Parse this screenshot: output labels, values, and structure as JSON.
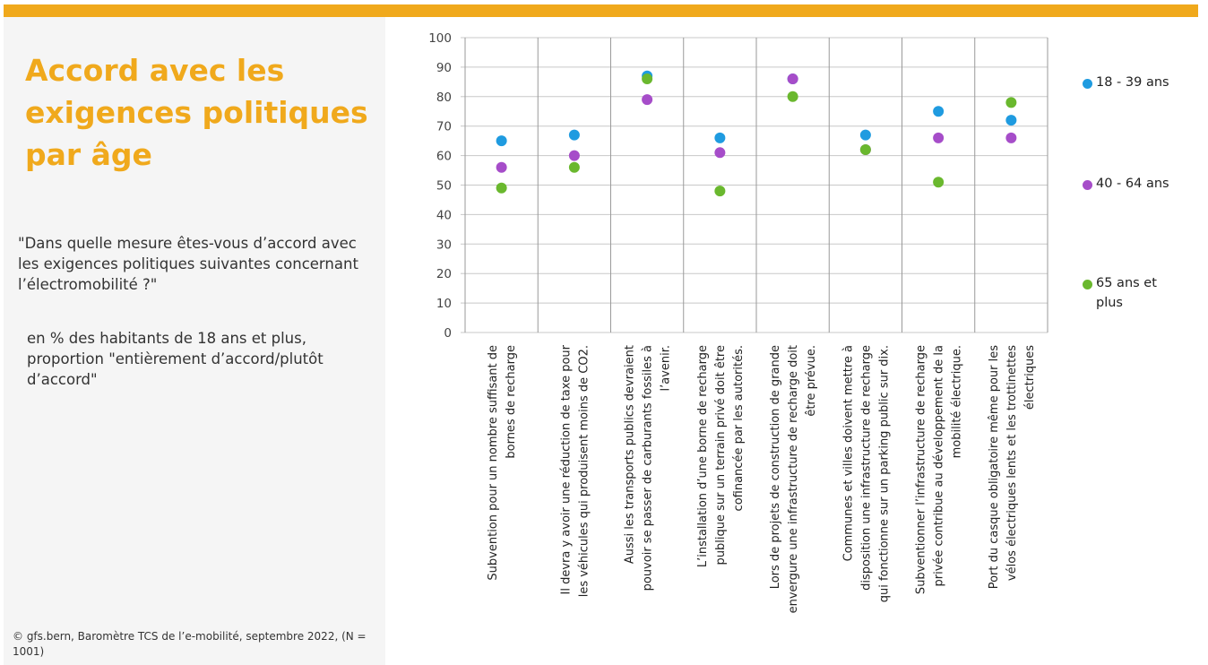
{
  "title": "Accord avec les exigences politiques par âge",
  "question": "\"Dans quelle mesure êtes-vous d’accord avec les exigences politiques suivantes concernant l’électromobilité ?\"",
  "note": "en % des habitants de 18 ans et plus, proportion \"entièrement d’accord/plutôt d’accord\"",
  "source": "© gfs.bern, Baromètre TCS de l’e-mobilité, septembre 2022, (N = 1001)",
  "colors": {
    "accent": "#f0a91c",
    "panel": "#f5f5f5"
  },
  "chart_data": {
    "type": "scatter",
    "ylim": [
      0,
      100
    ],
    "yticks": [
      0,
      10,
      20,
      30,
      40,
      50,
      60,
      70,
      80,
      90,
      100
    ],
    "grid": true,
    "legend_position": "right",
    "categories": [
      [
        "Subvention pour un nombre suffisant de",
        "bornes de recharge"
      ],
      [
        "Il devra y avoir une réduction de taxe pour",
        "les véhicules qui produisent moins de CO2."
      ],
      [
        "Aussi les transports publics devraient",
        "pouvoir se passer de carburants fossiles à",
        "l’avenir."
      ],
      [
        "L’installation d’une borne de recharge",
        "publique sur un terrain privé doit être",
        "cofinancée par les autorités."
      ],
      [
        "Lors de projets de construction de grande",
        "envergure une infrastructure de recharge doit",
        "être prévue."
      ],
      [
        "Communes et villes doivent mettre à",
        "disposition une infrastructure de recharge",
        "qui fonctionne sur un parking public sur dix."
      ],
      [
        "Subventionner l’infrastructure de recharge",
        "privée contribue au développement de la",
        "mobilité électrique."
      ],
      [
        "Port du casque obligatoire même pour les",
        "vélos électriques lents et les trottinettes",
        "électriques"
      ]
    ],
    "series": [
      {
        "name": "18 - 39 ans",
        "color": "#1f9be0",
        "values": [
          65,
          67,
          87,
          66,
          86,
          67,
          75,
          72
        ]
      },
      {
        "name": "40 - 64 ans",
        "color": "#a64dc9",
        "values": [
          56,
          60,
          79,
          61,
          86,
          62,
          66,
          66
        ]
      },
      {
        "name": "65 ans et plus",
        "color": "#6ab82e",
        "values": [
          49,
          56,
          86,
          48,
          80,
          62,
          51,
          78
        ]
      }
    ]
  }
}
